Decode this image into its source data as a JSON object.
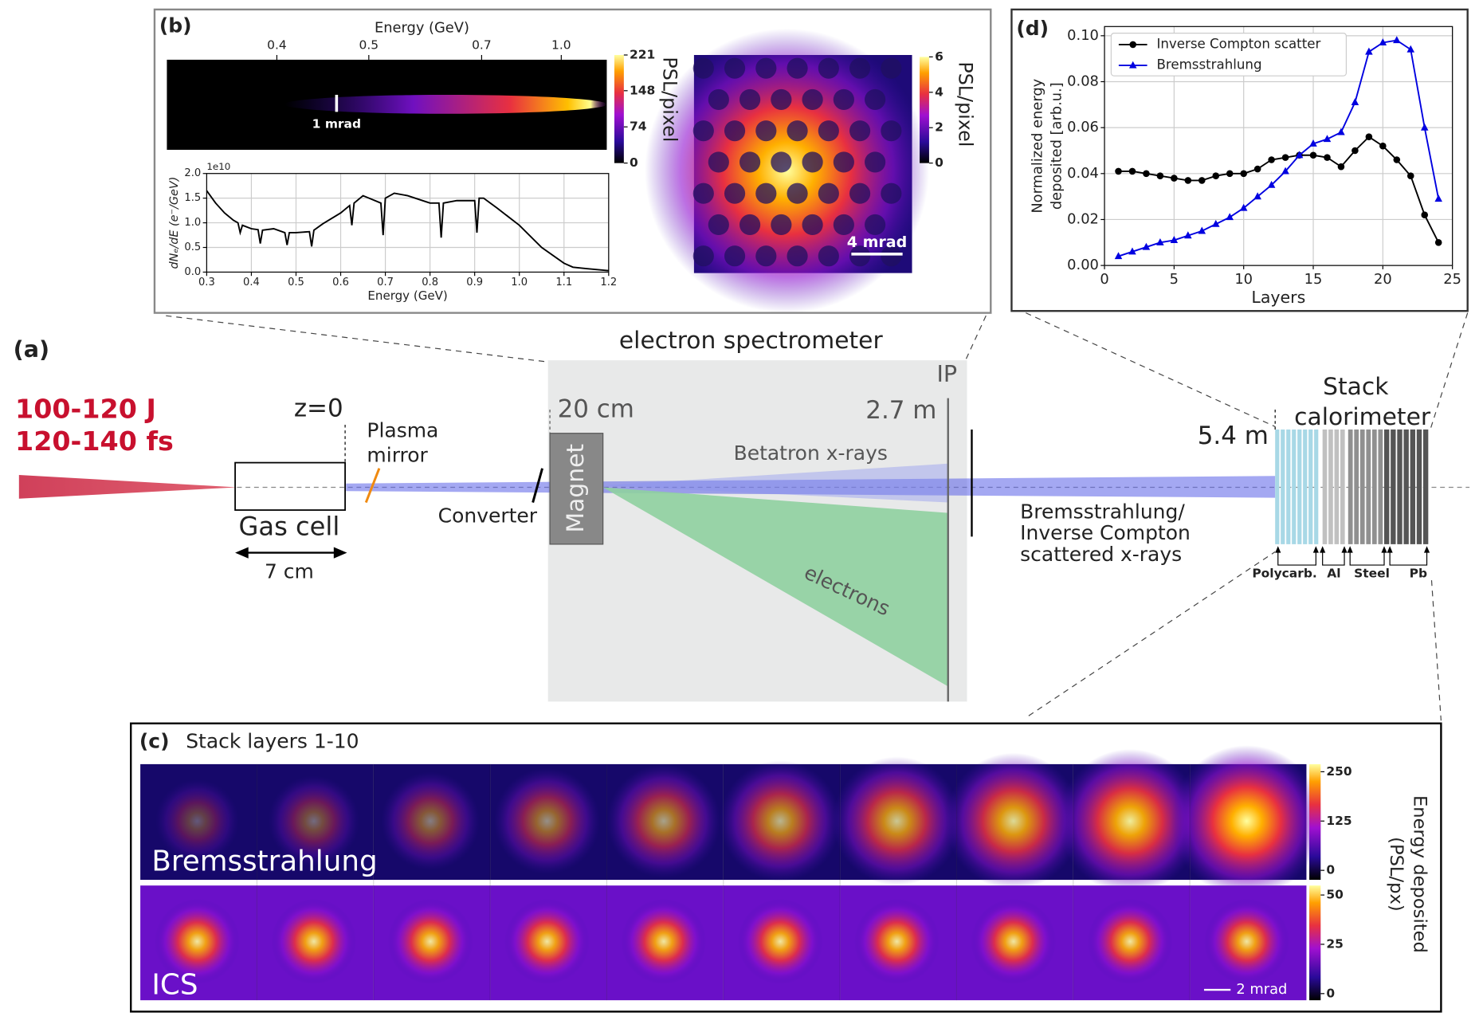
{
  "panel_a": {
    "label": "(a)",
    "laser": [
      "100-120 J",
      "120-140 fs"
    ],
    "z0": "z=0",
    "plasma_mirror": [
      "Plasma",
      "mirror"
    ],
    "gas_cell": "Gas cell",
    "gas_cell_length": "7 cm",
    "converter": "Converter",
    "spectrometer": "electron spectrometer",
    "magnet": "Magnet",
    "dist_20": "20 cm",
    "ip": "IP",
    "dist_27": "2.7 m",
    "betatron": "Betatron x-rays",
    "electrons": "electrons",
    "xray_label": [
      "Bremsstrahlung/",
      "Inverse Compton",
      "scattered x-rays"
    ],
    "dist_54": "5.4 m",
    "stack": [
      "Stack",
      "calorimeter"
    ],
    "materials": [
      "Polycarb.",
      "Al",
      "Steel",
      "Pb"
    ]
  },
  "panel_b": {
    "label": "(b)",
    "top_axis_title": "Energy (GeV)",
    "top_ticks": [
      "0.4",
      "0.5",
      "0.7",
      "1.0"
    ],
    "scale_1": "1 mrad",
    "colorbar1": {
      "label": "PSL/pixel",
      "ticks": [
        0,
        74,
        148,
        221
      ]
    },
    "scale_2": "4 mrad",
    "colorbar2": {
      "label": "PSL/pixel",
      "ticks": [
        0,
        2,
        4,
        6
      ]
    }
  },
  "panel_c": {
    "label": "(c)",
    "title": "Stack layers 1-10",
    "rows": [
      "Bremsstrahlung",
      "ICS"
    ],
    "scale": "2 mrad",
    "colorbar_label": [
      "Energy deposited",
      "(PSL/px)"
    ],
    "colorbar1_ticks": [
      0,
      125,
      250
    ],
    "colorbar2_ticks": [
      0,
      25,
      50
    ]
  },
  "chart_data": [
    {
      "type": "line",
      "xlabel": "Energy (GeV)",
      "ylabel": "dNₑ/dE (e⁻/GeV)",
      "offset_label": "1e10",
      "color": "#000000",
      "grid": true,
      "x": [
        0.3,
        0.32,
        0.34,
        0.36,
        0.37,
        0.375,
        0.38,
        0.4,
        0.415,
        0.42,
        0.425,
        0.45,
        0.475,
        0.48,
        0.485,
        0.5,
        0.53,
        0.535,
        0.54,
        0.56,
        0.6,
        0.62,
        0.625,
        0.63,
        0.65,
        0.69,
        0.695,
        0.7,
        0.72,
        0.75,
        0.8,
        0.82,
        0.825,
        0.83,
        0.86,
        0.9,
        0.905,
        0.91,
        0.92,
        0.95,
        1.0,
        1.05,
        1.1,
        1.12,
        1.15,
        1.2
      ],
      "values": [
        1.65,
        1.4,
        1.2,
        1.05,
        1.0,
        0.8,
        0.95,
        0.88,
        0.86,
        0.58,
        0.85,
        0.88,
        0.8,
        0.55,
        0.8,
        0.8,
        0.82,
        0.52,
        0.85,
        0.98,
        1.2,
        1.35,
        0.95,
        1.4,
        1.55,
        1.4,
        0.75,
        1.5,
        1.6,
        1.55,
        1.4,
        1.4,
        0.7,
        1.4,
        1.45,
        1.45,
        0.8,
        1.5,
        1.5,
        1.3,
        0.95,
        0.5,
        0.18,
        0.1,
        0.07,
        0.03
      ],
      "xlim": [
        0.3,
        1.2
      ],
      "xticks": [
        0.3,
        0.4,
        0.5,
        0.6,
        0.7,
        0.8,
        0.9,
        {
          "value": 1.0,
          "label": "1.0"
        },
        1.1,
        1.2
      ],
      "ylim": [
        0,
        2.0
      ],
      "yticks": [
        {
          "value": 0,
          "label": "0.0"
        },
        0.5,
        {
          "value": 1.0,
          "label": "1.0"
        },
        1.5,
        {
          "value": 2.0,
          "label": "2.0"
        }
      ]
    },
    {
      "type": "line",
      "panel_label": "(d)",
      "xlabel": "Layers",
      "ylabel": [
        "Normalized energy",
        "deposited [arb.u.]"
      ],
      "grid": true,
      "legend": "upper left",
      "x": [
        1,
        2,
        3,
        4,
        5,
        6,
        7,
        8,
        9,
        10,
        11,
        12,
        13,
        14,
        15,
        16,
        17,
        18,
        19,
        20,
        21,
        22,
        23,
        24
      ],
      "series": [
        {
          "name": "Inverse Compton scatter",
          "color": "#000000",
          "marker": "circle",
          "values": [
            0.041,
            0.041,
            0.04,
            0.039,
            0.038,
            0.037,
            0.037,
            0.039,
            0.04,
            0.04,
            0.042,
            0.046,
            0.047,
            0.048,
            0.048,
            0.047,
            0.043,
            0.05,
            0.056,
            0.052,
            0.046,
            0.039,
            0.022,
            0.01
          ]
        },
        {
          "name": "Bremsstrahlung",
          "color": "#0000e0",
          "marker": "triangle",
          "values": [
            0.004,
            0.006,
            0.008,
            0.01,
            0.011,
            0.013,
            0.015,
            0.018,
            0.021,
            0.025,
            0.03,
            0.035,
            0.041,
            0.048,
            0.053,
            0.055,
            0.058,
            0.071,
            0.093,
            0.097,
            0.098,
            0.094,
            0.06,
            0.029
          ]
        }
      ],
      "xlim": [
        0,
        25
      ],
      "xticks": [
        0,
        5,
        10,
        15,
        20,
        25
      ],
      "ylim": [
        0,
        0.104
      ],
      "yticks": [
        {
          "value": 0,
          "label": "0.00"
        },
        0.02,
        0.04,
        0.06,
        0.08,
        {
          "value": 0.1,
          "label": "0.10"
        }
      ]
    }
  ]
}
